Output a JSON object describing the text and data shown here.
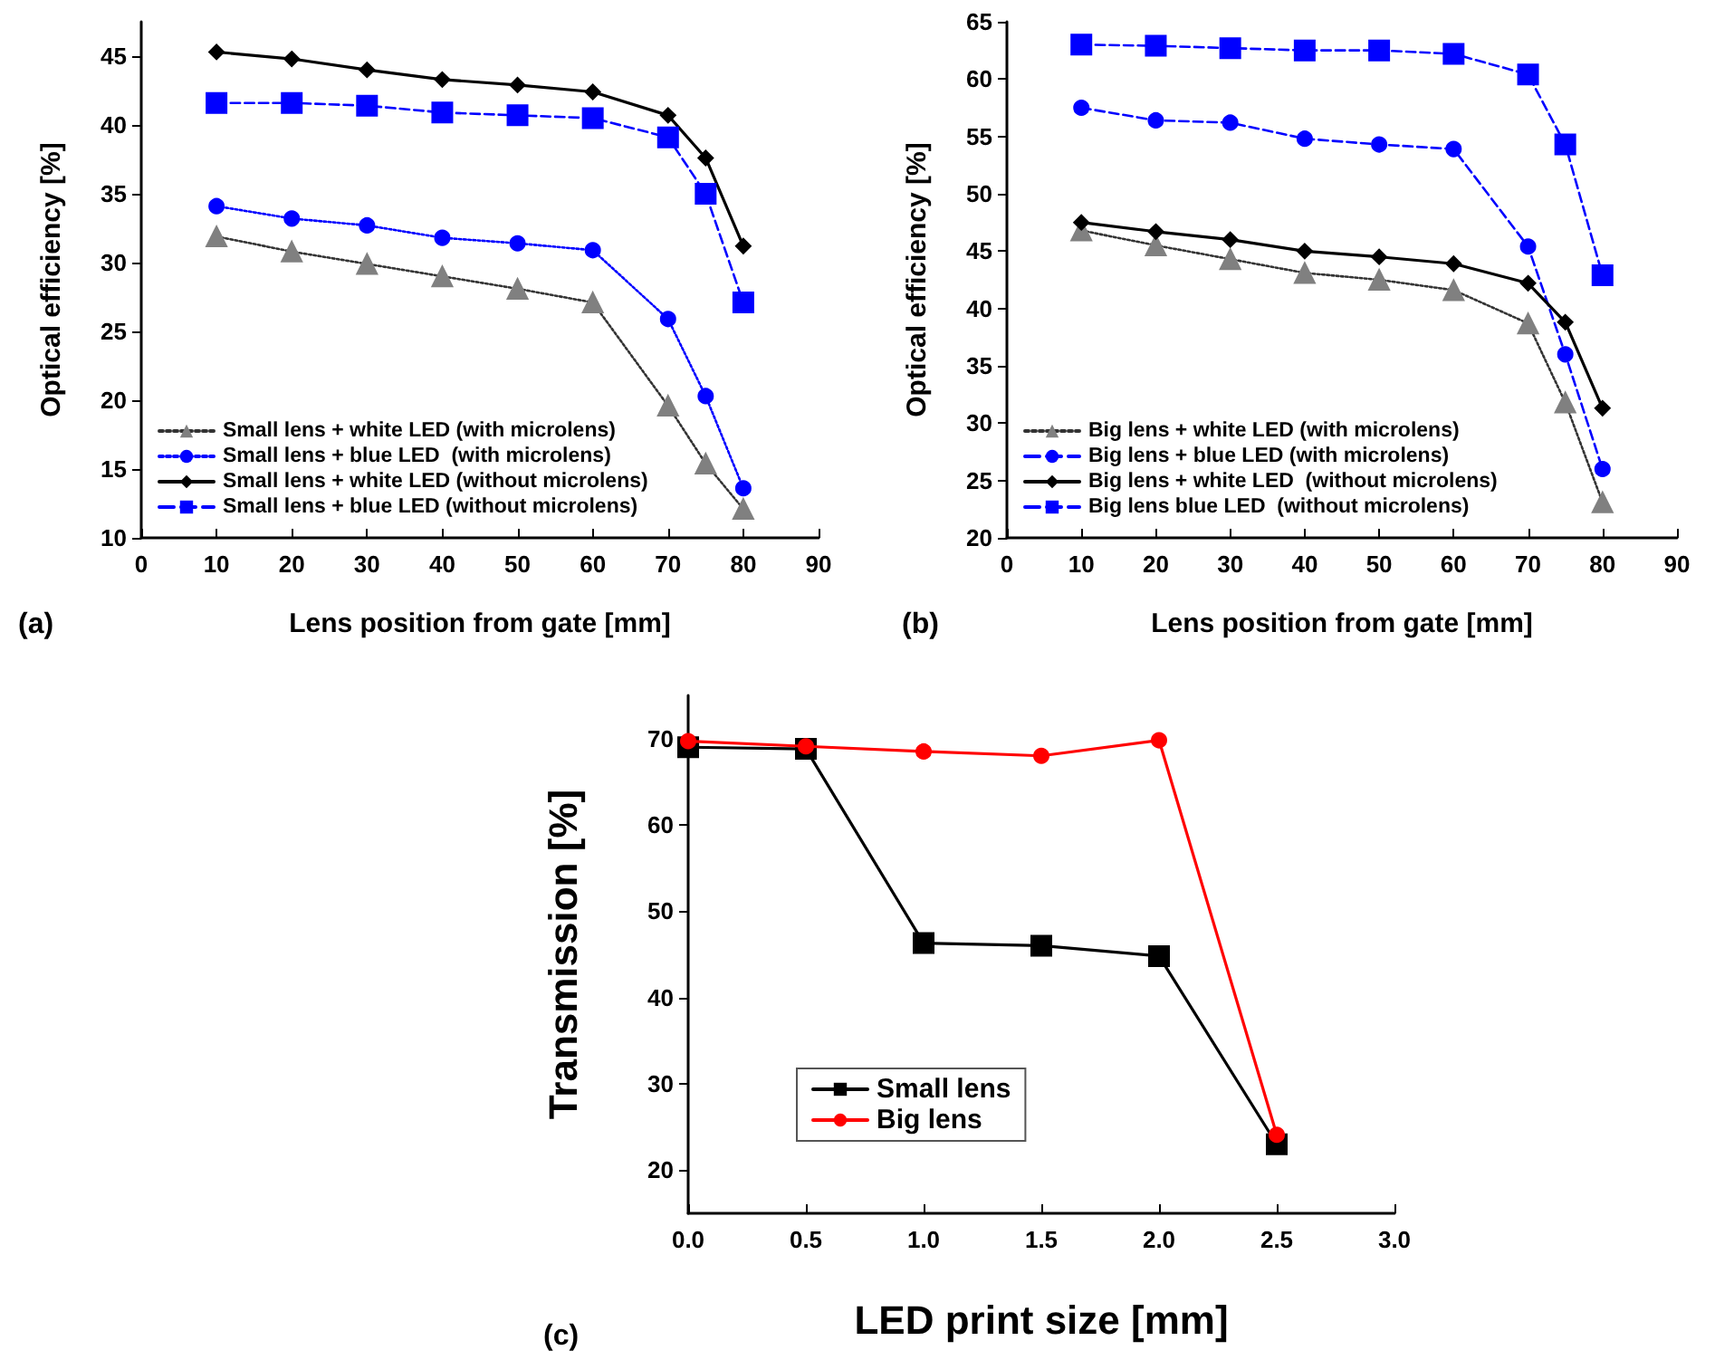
{
  "chart_data": [
    {
      "type": "line",
      "xlabel": "Lens position from gate [mm]",
      "ylabel": "Optical efficiency [%]",
      "annotations": [
        "(a)"
      ],
      "x": [
        10,
        20,
        30,
        40,
        50,
        60,
        70,
        75,
        80
      ],
      "xlim": [
        0,
        90
      ],
      "xticks": [
        0,
        10,
        20,
        30,
        40,
        50,
        60,
        70,
        80,
        90
      ],
      "ylim": [
        10,
        47.5
      ],
      "yticks": [
        10,
        15,
        20,
        25,
        30,
        35,
        40,
        45
      ],
      "grid": false,
      "legend": "bottom left",
      "series": [
        {
          "name": "Small lens + white LED (with microlens)",
          "color": "#808080",
          "marker": "triangle",
          "line_style": "dotted",
          "values": [
            31.9,
            30.8,
            29.9,
            29.0,
            28.1,
            27.1,
            19.6,
            15.4,
            12.1
          ]
        },
        {
          "name": "Small lens + blue LED  (with microlens)",
          "color": "#0000ff",
          "marker": "circle",
          "line_style": "dotted",
          "values": [
            34.1,
            33.2,
            32.7,
            31.8,
            31.4,
            30.9,
            25.9,
            20.3,
            13.6
          ]
        },
        {
          "name": "Small lens + white LED (without microlens)",
          "color": "#000000",
          "marker": "diamond",
          "line_style": "solid",
          "values": [
            45.3,
            44.8,
            44.0,
            43.3,
            42.9,
            42.4,
            40.7,
            37.6,
            31.2
          ]
        },
        {
          "name": "Small lens + blue LED (without microlens)",
          "color": "#0000ff",
          "marker": "square",
          "line_style": "dashed",
          "values": [
            41.6,
            41.6,
            41.4,
            40.9,
            40.7,
            40.5,
            39.1,
            35.0,
            27.1
          ]
        }
      ]
    },
    {
      "type": "line",
      "xlabel": "Lens position from gate [mm]",
      "ylabel": "Optical efficiency [%]",
      "annotations": [
        "(b)"
      ],
      "x": [
        10,
        20,
        30,
        40,
        50,
        60,
        70,
        75,
        80
      ],
      "xlim": [
        0,
        90
      ],
      "xticks": [
        0,
        10,
        20,
        30,
        40,
        50,
        60,
        70,
        80,
        90
      ],
      "ylim": [
        20,
        65
      ],
      "yticks": [
        20,
        25,
        30,
        35,
        40,
        45,
        50,
        55,
        60,
        65
      ],
      "grid": false,
      "legend": "bottom left",
      "series": [
        {
          "name": "Big lens + white LED (with microlens)",
          "color": "#808080",
          "marker": "triangle",
          "line_style": "dotted",
          "values": [
            46.8,
            45.5,
            44.3,
            43.1,
            42.5,
            41.6,
            38.7,
            31.8,
            23.1
          ]
        },
        {
          "name": "Big lens + blue LED (with microlens)",
          "color": "#0000ff",
          "marker": "circle",
          "line_style": "dashed",
          "values": [
            57.5,
            56.4,
            56.2,
            54.8,
            54.3,
            53.9,
            45.4,
            36.0,
            26.0
          ]
        },
        {
          "name": "Big lens + white LED  (without microlens)",
          "color": "#000000",
          "marker": "diamond",
          "line_style": "solid",
          "values": [
            47.5,
            46.7,
            46.0,
            45.0,
            44.5,
            43.9,
            42.2,
            38.8,
            31.3
          ]
        },
        {
          "name": "Big lens blue LED  (without microlens)",
          "color": "#0000ff",
          "marker": "square",
          "line_style": "dashed",
          "values": [
            63.0,
            62.9,
            62.7,
            62.5,
            62.5,
            62.2,
            60.4,
            54.3,
            42.9
          ]
        }
      ]
    },
    {
      "type": "line",
      "xlabel": "LED print size [mm]",
      "ylabel": "Transmission [%]",
      "annotations": [
        "(c)"
      ],
      "x": [
        0,
        0.5,
        1,
        1.5,
        2,
        2.5
      ],
      "xlim": [
        0,
        3
      ],
      "xticks": [
        {
          "value": 0,
          "label": "0.0"
        },
        {
          "value": 0.5,
          "label": "0.5"
        },
        {
          "value": 1,
          "label": "1.0"
        },
        {
          "value": 1.5,
          "label": "1.5"
        },
        {
          "value": 2,
          "label": "2.0"
        },
        {
          "value": 2.5,
          "label": "2.5"
        },
        {
          "value": 3,
          "label": "3.0"
        }
      ],
      "ylim": [
        15,
        75
      ],
      "yticks": [
        20,
        30,
        40,
        50,
        60,
        70
      ],
      "grid": false,
      "legend": "bottom",
      "line_style": "solid",
      "series": [
        {
          "name": "Small lens",
          "color": "#000000",
          "marker": "square",
          "values": [
            69.0,
            68.8,
            46.3,
            46.0,
            44.8,
            23.0
          ]
        },
        {
          "name": "Big lens",
          "color": "#ff0000",
          "marker": "circle",
          "values": [
            69.7,
            69.1,
            68.5,
            68.0,
            69.8,
            24.1
          ]
        }
      ]
    }
  ]
}
